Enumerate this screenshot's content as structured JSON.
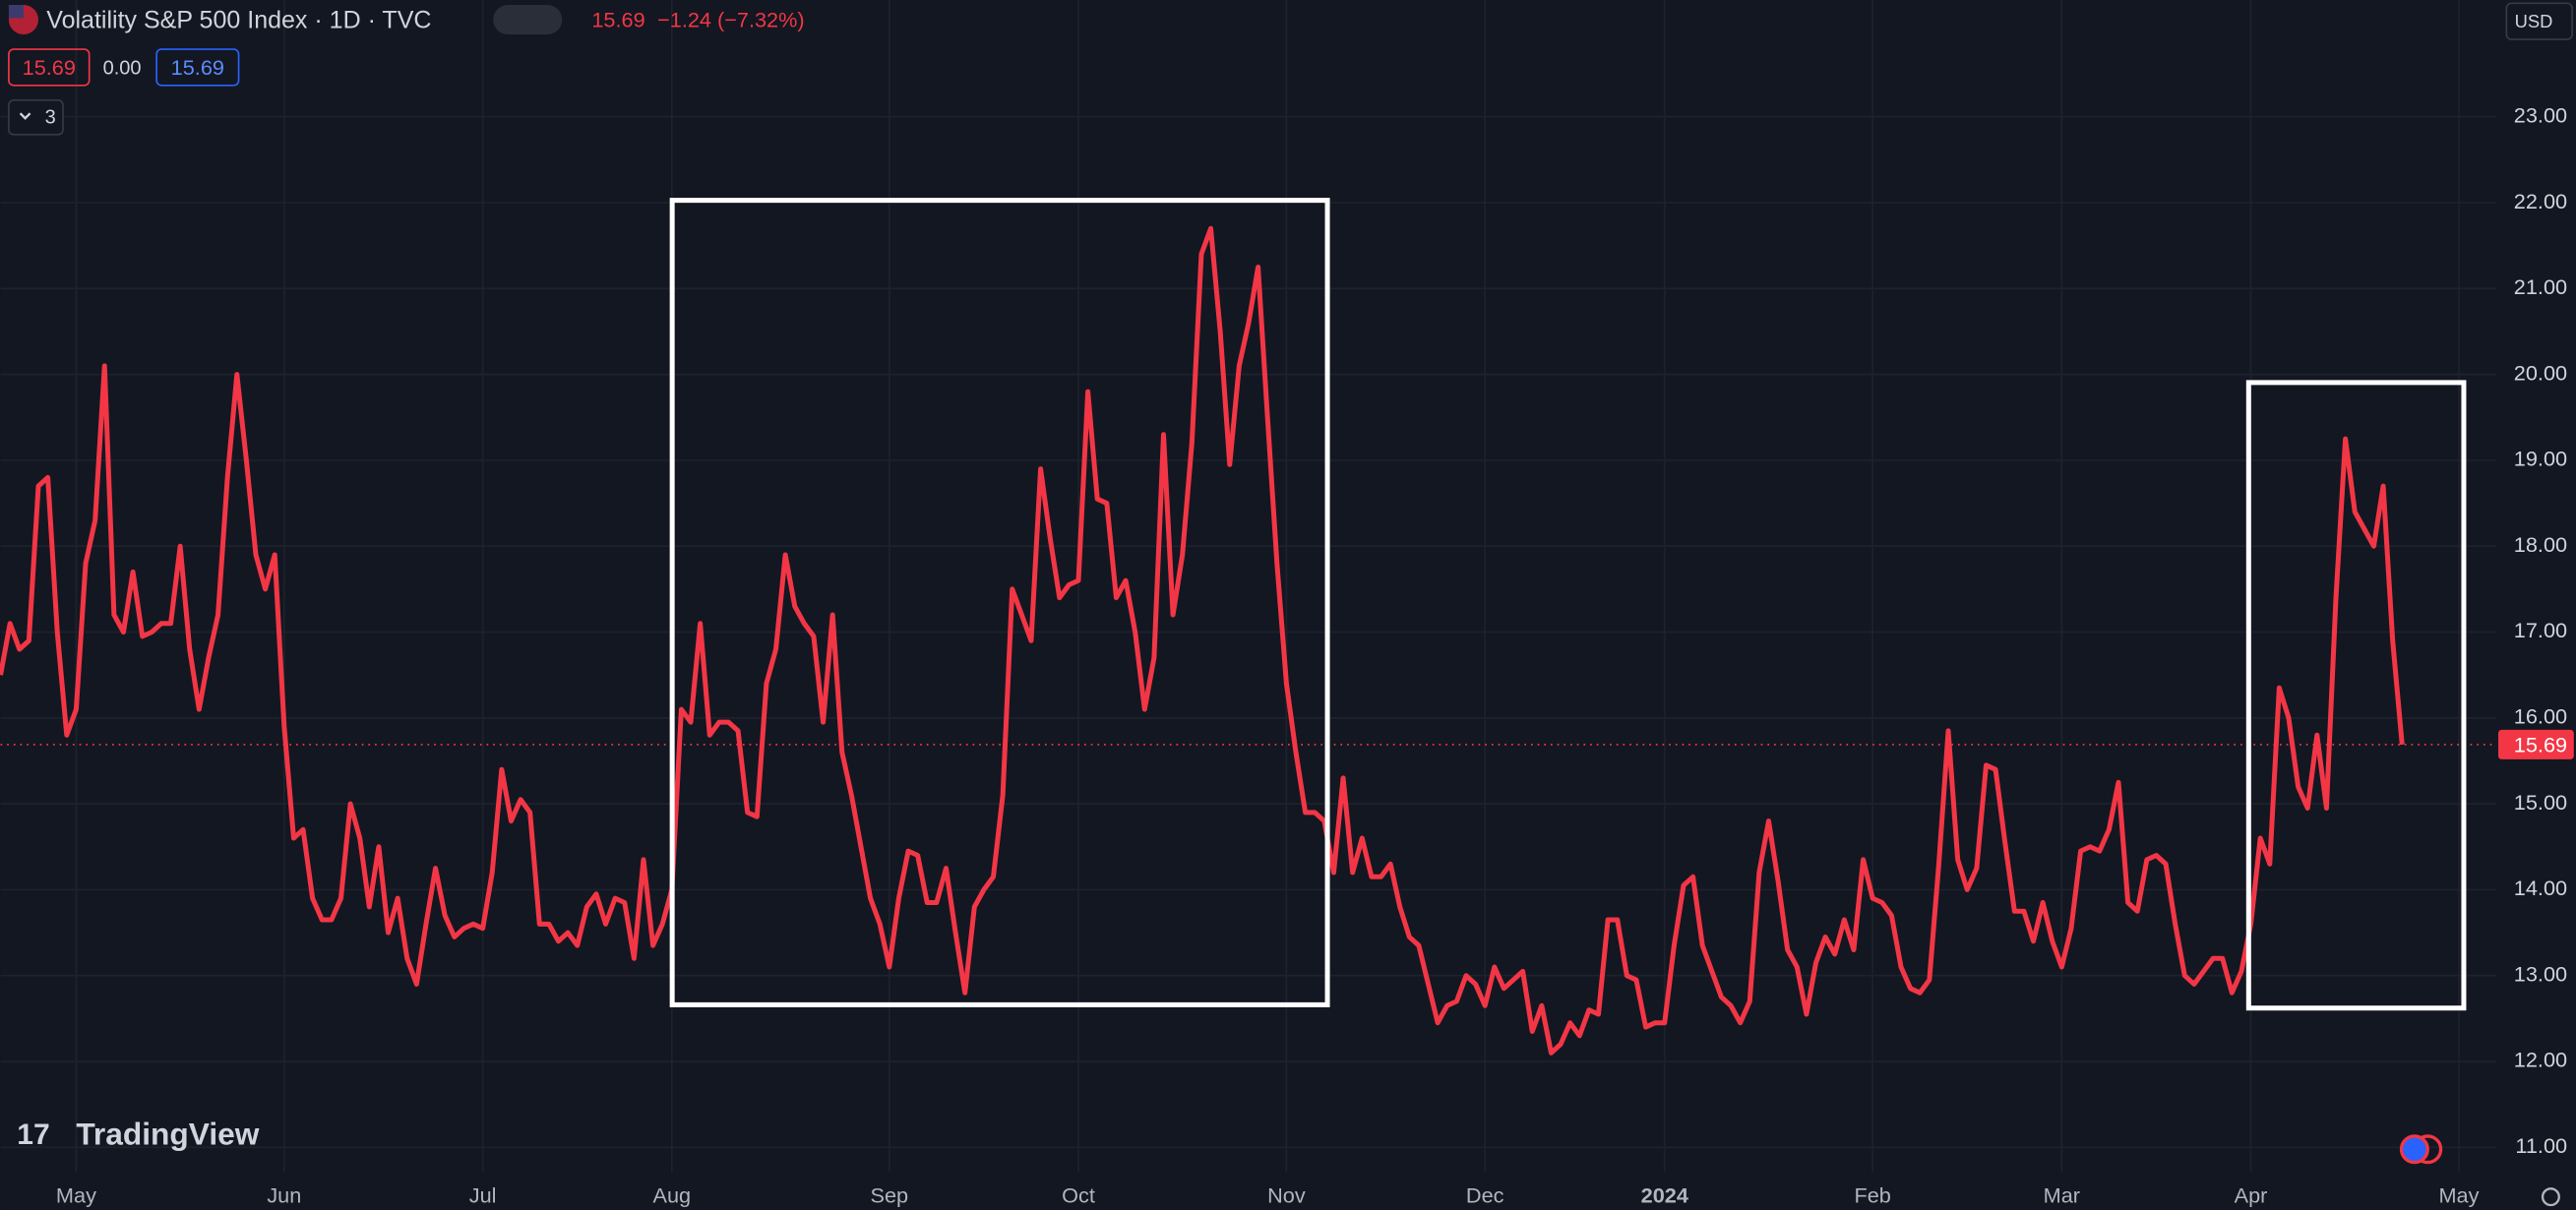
{
  "header": {
    "title": "Volatility S&P 500 Index · 1D · TVC",
    "price": "15.69",
    "change": "−1.24 (−7.32%)",
    "bid": "15.69",
    "spread": "0.00",
    "ask": "15.69",
    "indicators": "3",
    "currency": "USD",
    "brand": "TradingView"
  },
  "chart_data": {
    "type": "line",
    "color": "#f23645",
    "grid": true,
    "ylim": [
      10.71,
      24.36
    ],
    "yticks": [
      {
        "value": 11,
        "label": "11.00"
      },
      {
        "value": 12,
        "label": "12.00"
      },
      {
        "value": 13,
        "label": "13.00"
      },
      {
        "value": 14,
        "label": "14.00"
      },
      {
        "value": 15,
        "label": "15.00"
      },
      {
        "value": 16,
        "label": "16.00"
      },
      {
        "value": 17,
        "label": "17.00"
      },
      {
        "value": 18,
        "label": "18.00"
      },
      {
        "value": 19,
        "label": "19.00"
      },
      {
        "value": 20,
        "label": "20.00"
      },
      {
        "value": 21,
        "label": "21.00"
      },
      {
        "value": 22,
        "label": "22.00"
      },
      {
        "value": 23,
        "label": "23.00"
      }
    ],
    "categories": [
      null,
      null,
      null,
      null,
      null,
      null,
      null,
      null,
      "May",
      null,
      null,
      null,
      null,
      null,
      null,
      null,
      null,
      null,
      null,
      null,
      null,
      null,
      null,
      null,
      null,
      null,
      null,
      null,
      null,
      null,
      "Jun",
      null,
      null,
      null,
      null,
      null,
      null,
      null,
      null,
      null,
      null,
      null,
      null,
      null,
      null,
      null,
      null,
      null,
      null,
      null,
      null,
      "Jul",
      null,
      null,
      null,
      null,
      null,
      null,
      null,
      null,
      null,
      null,
      null,
      null,
      null,
      null,
      null,
      null,
      null,
      null,
      null,
      "Aug",
      null,
      null,
      null,
      null,
      null,
      null,
      null,
      null,
      null,
      null,
      null,
      null,
      null,
      null,
      null,
      null,
      null,
      null,
      null,
      null,
      null,
      null,
      "Sep",
      null,
      null,
      null,
      null,
      null,
      null,
      null,
      null,
      null,
      null,
      null,
      null,
      null,
      null,
      null,
      null,
      null,
      null,
      null,
      "Oct",
      null,
      null,
      null,
      null,
      null,
      null,
      null,
      null,
      null,
      null,
      null,
      null,
      null,
      null,
      null,
      null,
      null,
      null,
      null,
      null,
      null,
      "Nov",
      null,
      null,
      null,
      null,
      null,
      null,
      null,
      null,
      null,
      null,
      null,
      null,
      null,
      null,
      null,
      null,
      null,
      null,
      null,
      null,
      "Dec",
      null,
      null,
      null,
      null,
      null,
      null,
      null,
      null,
      null,
      null,
      null,
      null,
      null,
      null,
      null,
      null,
      null,
      null,
      "2024",
      null,
      null,
      null,
      null,
      null,
      null,
      null,
      null,
      null,
      null,
      null,
      null,
      null,
      null,
      null,
      null,
      null,
      null,
      null,
      null,
      null,
      "Feb",
      null,
      null,
      null,
      null,
      null,
      null,
      null,
      null,
      null,
      null,
      null,
      null,
      null,
      null,
      null,
      null,
      null,
      null,
      null,
      "Mar",
      null,
      null,
      null,
      null,
      null,
      null,
      null,
      null,
      null,
      null,
      null,
      null,
      null,
      null,
      null,
      null,
      null,
      null,
      null,
      "Apr",
      null,
      null,
      null,
      null,
      null,
      null,
      null,
      null,
      null,
      null,
      null,
      null,
      null,
      null,
      null,
      null,
      null,
      null,
      null,
      null,
      null,
      "May"
    ],
    "values": [
      16.5,
      17.1,
      16.8,
      16.9,
      18.7,
      18.8,
      17.0,
      15.8,
      16.1,
      17.8,
      18.3,
      20.1,
      17.2,
      17.0,
      17.7,
      16.95,
      17.0,
      17.1,
      17.1,
      18.0,
      16.8,
      16.1,
      16.7,
      17.2,
      18.8,
      20.0,
      19.0,
      17.9,
      17.5,
      17.9,
      15.9,
      14.6,
      14.7,
      13.9,
      13.65,
      13.65,
      13.9,
      15.0,
      14.6,
      13.8,
      14.5,
      13.5,
      13.9,
      13.2,
      12.9,
      13.6,
      14.25,
      13.7,
      13.45,
      13.55,
      13.6,
      13.55,
      14.2,
      15.4,
      14.8,
      15.05,
      14.9,
      13.6,
      13.6,
      13.4,
      13.5,
      13.35,
      13.8,
      13.95,
      13.6,
      13.9,
      13.85,
      13.2,
      14.35,
      13.35,
      13.6,
      14.0,
      16.1,
      15.95,
      17.1,
      15.8,
      15.95,
      15.95,
      15.85,
      14.9,
      14.85,
      16.4,
      16.8,
      17.9,
      17.3,
      17.1,
      16.95,
      15.95,
      17.2,
      15.6,
      15.1,
      14.5,
      13.9,
      13.6,
      13.1,
      13.9,
      14.45,
      14.4,
      13.85,
      13.85,
      14.25,
      13.5,
      12.8,
      13.8,
      14.0,
      14.15,
      15.1,
      17.5,
      17.2,
      16.9,
      18.9,
      18.1,
      17.4,
      17.55,
      17.6,
      19.8,
      18.55,
      18.5,
      17.4,
      17.6,
      17.0,
      16.1,
      16.7,
      19.3,
      17.2,
      17.9,
      19.2,
      21.4,
      21.7,
      20.5,
      18.95,
      20.1,
      20.6,
      21.25,
      19.5,
      17.8,
      16.4,
      15.6,
      14.9,
      14.9,
      14.8,
      14.2,
      15.3,
      14.2,
      14.6,
      14.15,
      14.15,
      14.3,
      13.8,
      13.45,
      13.35,
      12.9,
      12.45,
      12.65,
      12.7,
      13.0,
      12.9,
      12.65,
      13.1,
      12.85,
      12.95,
      13.05,
      12.35,
      12.65,
      12.1,
      12.2,
      12.45,
      12.3,
      12.6,
      12.55,
      13.65,
      13.65,
      13.0,
      12.95,
      12.4,
      12.45,
      12.45,
      13.35,
      14.05,
      14.15,
      13.35,
      13.05,
      12.75,
      12.65,
      12.45,
      12.7,
      14.2,
      14.8,
      14.1,
      13.3,
      13.1,
      12.55,
      13.15,
      13.45,
      13.25,
      13.65,
      13.3,
      14.35,
      13.9,
      13.85,
      13.7,
      13.1,
      12.85,
      12.8,
      12.95,
      14.3,
      15.85,
      14.35,
      14.0,
      14.25,
      15.45,
      15.4,
      14.55,
      13.75,
      13.75,
      13.4,
      13.85,
      13.4,
      13.1,
      13.55,
      14.45,
      14.5,
      14.45,
      14.7,
      15.25,
      13.85,
      13.75,
      14.35,
      14.4,
      14.3,
      13.6,
      13.0,
      12.9,
      13.05,
      13.2,
      13.2,
      12.8,
      13.05,
      13.6,
      14.6,
      14.3,
      16.35,
      16.0,
      15.2,
      14.95,
      15.8,
      14.95,
      17.4,
      19.25,
      18.4,
      18.2,
      18.0,
      18.7,
      16.9,
      15.69,
      null,
      null,
      null,
      null,
      null,
      null
    ]
  }
}
